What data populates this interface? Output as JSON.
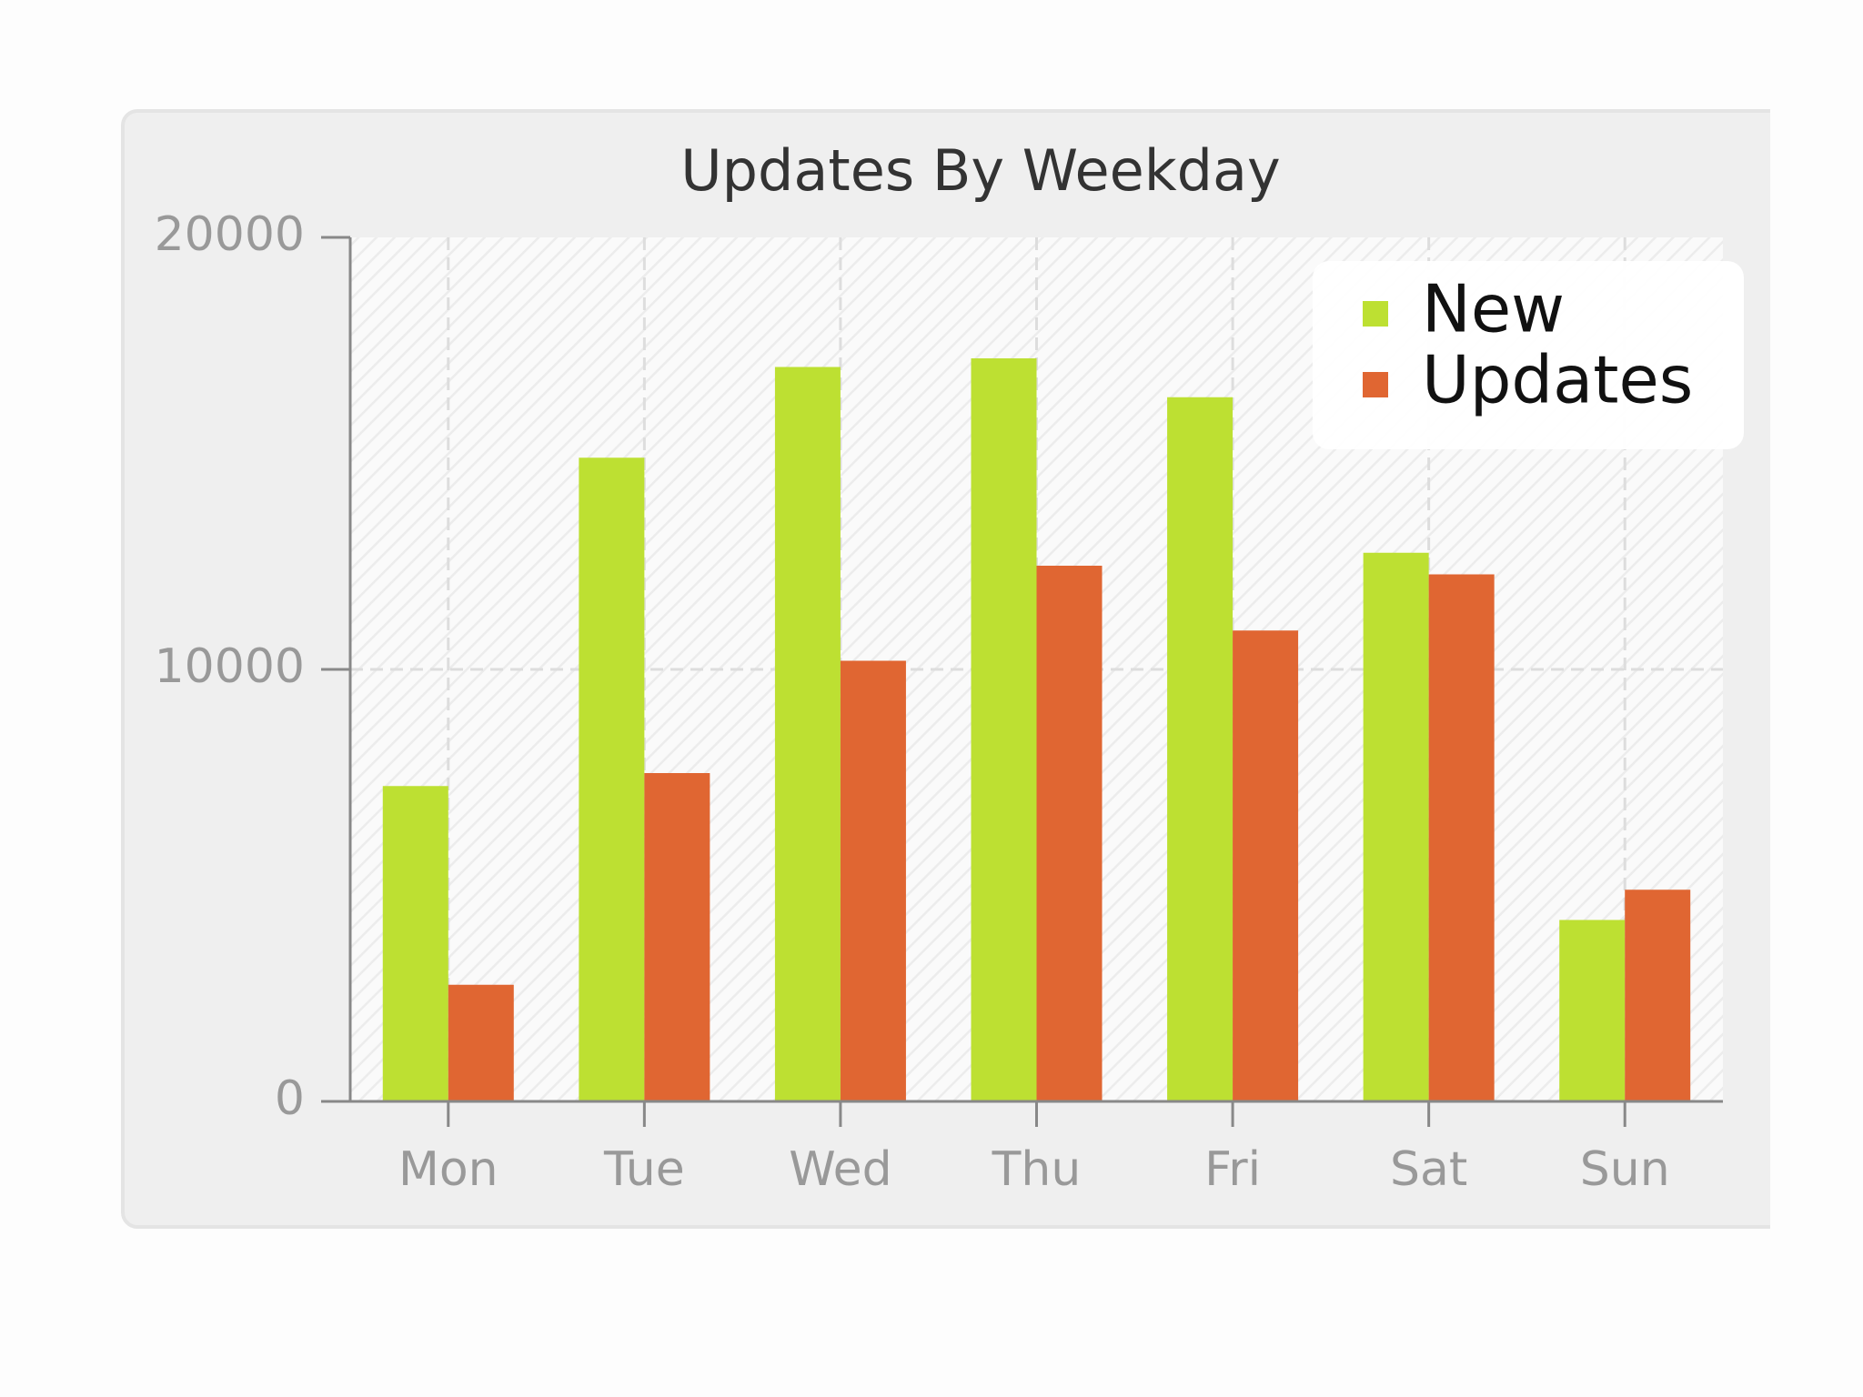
{
  "chart_data": {
    "type": "bar",
    "title": "Updates By Weekday",
    "categories": [
      "Mon",
      "Tue",
      "Wed",
      "Thu",
      "Fri",
      "Sat",
      "Sun"
    ],
    "series": [
      {
        "name": "New",
        "color": "#bde032",
        "values": [
          7300,
          14900,
          17000,
          17200,
          16300,
          12700,
          4200
        ]
      },
      {
        "name": "Updates",
        "color": "#e06632",
        "values": [
          2700,
          7600,
          10200,
          12400,
          10900,
          12200,
          4900
        ]
      }
    ],
    "ylim": [
      0,
      20000
    ],
    "yticks": [
      0,
      10000,
      20000
    ],
    "grid": true,
    "legend": "upper right"
  }
}
